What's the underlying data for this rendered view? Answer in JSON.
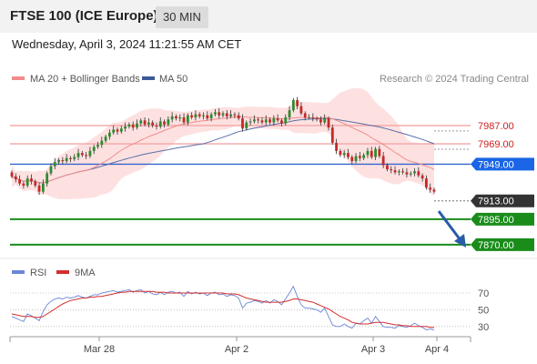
{
  "header": {
    "title": "FTSE 100 (ICE Europe)",
    "timeframe": "30 MIN",
    "date": "Wednesday, April 3, 2024 11:21:55 AM CET"
  },
  "legend": {
    "ma20_label": "MA 20 + Bollinger Bands",
    "ma50_label": "MA 50",
    "credit": "Research © 2024 Trading Central"
  },
  "rsi_legend": {
    "rsi_label": "RSI",
    "ma_label": "9MA"
  },
  "colors": {
    "resistance": "#f4a5a5",
    "resistance_text": "#cc2222",
    "pivot": "#3366cc",
    "pivot_badge": "#1a66e6",
    "support": "#1a8c1a",
    "support_badge": "#1a8c1a",
    "current_badge": "#333333",
    "bollinger_fill": "#fde1e1",
    "ma20": "#f28b8b",
    "ma50": "#5a6fa8",
    "candle_up": "#2e8b2e",
    "candle_down": "#c62828",
    "rsi": "#6a86d8",
    "rsi_ma": "#d32f2f",
    "arrow": "#2a5ba8"
  },
  "chart_data": {
    "type": "candlestick",
    "x_ticks": [
      "Mar 28",
      "Apr 2",
      "Apr 3",
      "Apr 4"
    ],
    "price_levels": [
      {
        "value": 7987.0,
        "label": "7987.00",
        "kind": "resistance"
      },
      {
        "value": 7969.0,
        "label": "7969.00",
        "kind": "resistance"
      },
      {
        "value": 7949.0,
        "label": "7949.00",
        "kind": "pivot"
      },
      {
        "value": 7913.0,
        "label": "7913.00",
        "kind": "current"
      },
      {
        "value": 7895.0,
        "label": "7895.00",
        "kind": "support"
      },
      {
        "value": 7870.0,
        "label": "7870.00",
        "kind": "support"
      }
    ],
    "price_range": [
      7860,
      8020
    ],
    "close": [
      7937,
      7934,
      7930,
      7928,
      7935,
      7932,
      7928,
      7922,
      7930,
      7940,
      7947,
      7951,
      7953,
      7952,
      7955,
      7954,
      7956,
      7960,
      7958,
      7957,
      7962,
      7966,
      7968,
      7972,
      7976,
      7980,
      7983,
      7981,
      7984,
      7986,
      7988,
      7985,
      7989,
      7992,
      7988,
      7990,
      7987,
      7986,
      7991,
      7988,
      7993,
      7996,
      7994,
      7995,
      7990,
      7997,
      7995,
      7998,
      7996,
      7997,
      7994,
      7998,
      8000,
      7997,
      7999,
      7996,
      7998,
      7997,
      7994,
      7984,
      7990,
      7991,
      7993,
      7992,
      7990,
      7993,
      7990,
      7994,
      7992,
      7989,
      7995,
      8002,
      8012,
      8006,
      7999,
      7995,
      7995,
      7994,
      7993,
      7990,
      7994,
      7985,
      7970,
      7962,
      7958,
      7960,
      7956,
      7952,
      7957,
      7955,
      7958,
      7962,
      7956,
      7964,
      7957,
      7948,
      7944,
      7943,
      7941,
      7942,
      7941,
      7939,
      7940,
      7942,
      7938,
      7935,
      7926,
      7924,
      7922
    ],
    "open": [
      7941,
      7937,
      7934,
      7930,
      7928,
      7935,
      7932,
      7928,
      7922,
      7930,
      7940,
      7947,
      7951,
      7953,
      7952,
      7955,
      7954,
      7956,
      7960,
      7958,
      7957,
      7962,
      7966,
      7968,
      7972,
      7976,
      7980,
      7983,
      7981,
      7984,
      7986,
      7988,
      7985,
      7989,
      7992,
      7988,
      7990,
      7987,
      7986,
      7991,
      7988,
      7993,
      7996,
      7994,
      7995,
      7990,
      7997,
      7995,
      7998,
      7996,
      7997,
      7994,
      7998,
      8000,
      7997,
      7999,
      7996,
      7998,
      7997,
      7994,
      7984,
      7990,
      7991,
      7993,
      7992,
      7990,
      7993,
      7990,
      7994,
      7992,
      7989,
      7995,
      8002,
      8012,
      8006,
      7999,
      7995,
      7995,
      7994,
      7993,
      7990,
      7994,
      7985,
      7970,
      7962,
      7958,
      7960,
      7956,
      7952,
      7957,
      7955,
      7958,
      7962,
      7956,
      7964,
      7957,
      7948,
      7944,
      7943,
      7941,
      7942,
      7941,
      7939,
      7940,
      7942,
      7938,
      7935,
      7926,
      7924
    ],
    "rsi_ticks": [
      70,
      50,
      30
    ],
    "rsi_range": [
      20,
      82
    ],
    "rsi": [
      42,
      40,
      38,
      36,
      45,
      43,
      40,
      37,
      48,
      56,
      60,
      63,
      64,
      63,
      65,
      64,
      65,
      67,
      65,
      64,
      66,
      68,
      68,
      70,
      71,
      72,
      73,
      71,
      72,
      73,
      74,
      71,
      73,
      74,
      70,
      72,
      69,
      68,
      71,
      68,
      71,
      72,
      70,
      71,
      66,
      72,
      69,
      71,
      69,
      70,
      67,
      70,
      71,
      68,
      69,
      66,
      68,
      67,
      64,
      52,
      58,
      59,
      61,
      60,
      58,
      61,
      58,
      62,
      60,
      56,
      63,
      70,
      78,
      66,
      56,
      52,
      52,
      51,
      50,
      47,
      52,
      42,
      32,
      30,
      30,
      33,
      30,
      28,
      34,
      33,
      37,
      40,
      34,
      42,
      36,
      30,
      29,
      29,
      28,
      31,
      30,
      29,
      31,
      34,
      31,
      29,
      26,
      27,
      26
    ],
    "rsi_ma": [
      45,
      44,
      43,
      42,
      42,
      42,
      41,
      41,
      42,
      45,
      48,
      51,
      54,
      57,
      59,
      61,
      62,
      63,
      64,
      64,
      65,
      65,
      66,
      66,
      67,
      68,
      69,
      70,
      71,
      71,
      72,
      72,
      72,
      72,
      72,
      72,
      72,
      71,
      71,
      71,
      70,
      70,
      70,
      70,
      70,
      70,
      70,
      70,
      70,
      70,
      70,
      70,
      70,
      70,
      70,
      69,
      69,
      69,
      68,
      66,
      64,
      63,
      62,
      61,
      60,
      59,
      59,
      59,
      59,
      59,
      60,
      61,
      63,
      63,
      62,
      61,
      60,
      59,
      57,
      55,
      53,
      51,
      48,
      45,
      42,
      40,
      38,
      35,
      34,
      33,
      33,
      33,
      34,
      35,
      35,
      35,
      34,
      33,
      32,
      32,
      31,
      31,
      30,
      30,
      30,
      30,
      30,
      29,
      29
    ]
  }
}
